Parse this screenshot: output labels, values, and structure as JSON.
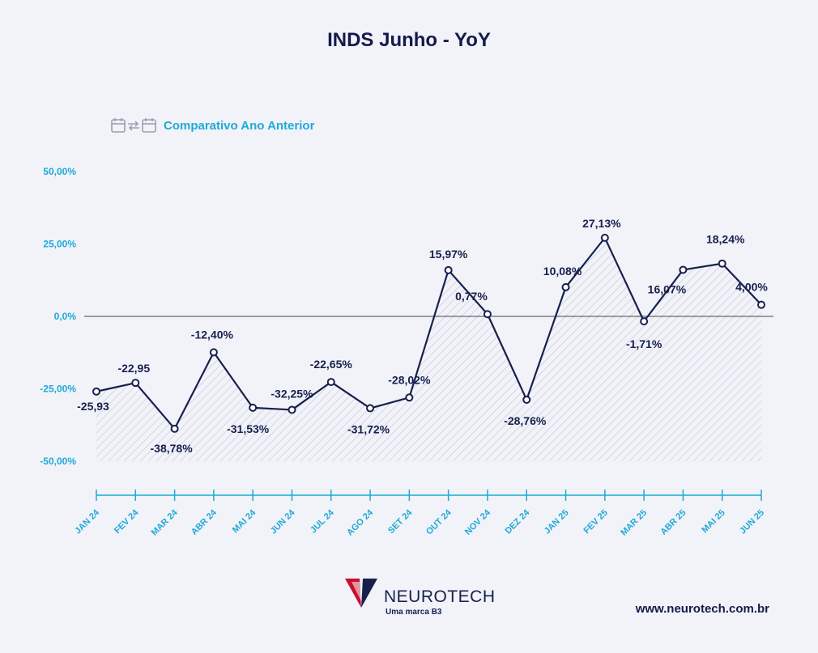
{
  "title": "INDS Junho - YoY",
  "legend": {
    "label": "Comparativo Ano Anterior",
    "icon": "calendar-compare-icon"
  },
  "colors": {
    "line": "#17204d",
    "axis": "#1fa9d6",
    "accent": "#1fa9d6",
    "title": "#141a4a",
    "hatch": "#c4c9d8",
    "zero_line": "#444444",
    "background": "#f1f3f9"
  },
  "chart_data": {
    "type": "line",
    "categories": [
      "JAN 24",
      "FEV 24",
      "MAR 24",
      "ABR 24",
      "MAI 24",
      "JUN 24",
      "JUL 24",
      "AGO 24",
      "SET 24",
      "OUT 24",
      "NOV 24",
      "DEZ 24",
      "JAN 25",
      "FEV 25",
      "MAR 25",
      "ABR 25",
      "MAI 25",
      "JUN 25"
    ],
    "values": [
      -25.93,
      -22.95,
      -38.78,
      -12.4,
      -31.53,
      -32.25,
      -22.65,
      -31.72,
      -28.02,
      15.97,
      0.77,
      -28.76,
      10.08,
      27.13,
      -1.71,
      16.07,
      18.24,
      4.0
    ],
    "data_labels": [
      "-25,93",
      "-22,95",
      "-38,78%",
      "-12,40%",
      "-31,53%",
      "-32,25%",
      "-22,65%",
      "-31,72%",
      "-28,02%",
      "15,97%",
      "0,77%",
      "-28,76%",
      "10,08%",
      "27,13%",
      "-1,71%",
      "16,07%",
      "18,24%",
      "4,00%"
    ],
    "y_ticks": [
      50,
      25,
      0,
      -25,
      -50
    ],
    "y_tick_labels": [
      "50,00%",
      "25,00%",
      "0,0%",
      "-25,00%",
      "-50,00%"
    ],
    "ylim": [
      -50,
      50
    ],
    "area_fill": "hatched",
    "grid": false
  },
  "footer": {
    "brand": "NEUROTECH",
    "tagline": "Uma marca B3",
    "website": "www.neurotech.com.br"
  }
}
